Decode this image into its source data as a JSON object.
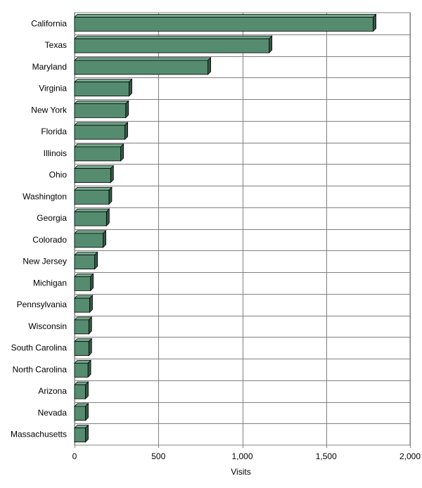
{
  "chart_data": {
    "type": "bar",
    "orientation": "horizontal",
    "categories": [
      "California",
      "Texas",
      "Maryland",
      "Virginia",
      "New York",
      "Florida",
      "Illinois",
      "Ohio",
      "Washington",
      "Georgia",
      "Colorado",
      "New Jersey",
      "Michigan",
      "Pennsylvania",
      "Wisconsin",
      "South Carolina",
      "North Carolina",
      "Arizona",
      "Nevada",
      "Massachusetts"
    ],
    "values": [
      1780,
      1160,
      795,
      325,
      305,
      300,
      275,
      215,
      205,
      190,
      170,
      120,
      95,
      90,
      85,
      85,
      80,
      65,
      65,
      65
    ],
    "title": "",
    "xlabel": "Visits",
    "ylabel": "",
    "xlim": [
      0,
      2000
    ],
    "xticks": [
      0,
      500,
      1000,
      1500,
      2000
    ],
    "xtick_labels": [
      "0",
      "500",
      "1,000",
      "1,500",
      "2,000"
    ],
    "grid": "vertical",
    "legend": "none",
    "colors": {
      "bar_front": "#558C70",
      "bar_top": "#74A98C",
      "bar_side": "#2F5A44",
      "gridline": "#808080",
      "plot_border": "#808080"
    }
  }
}
